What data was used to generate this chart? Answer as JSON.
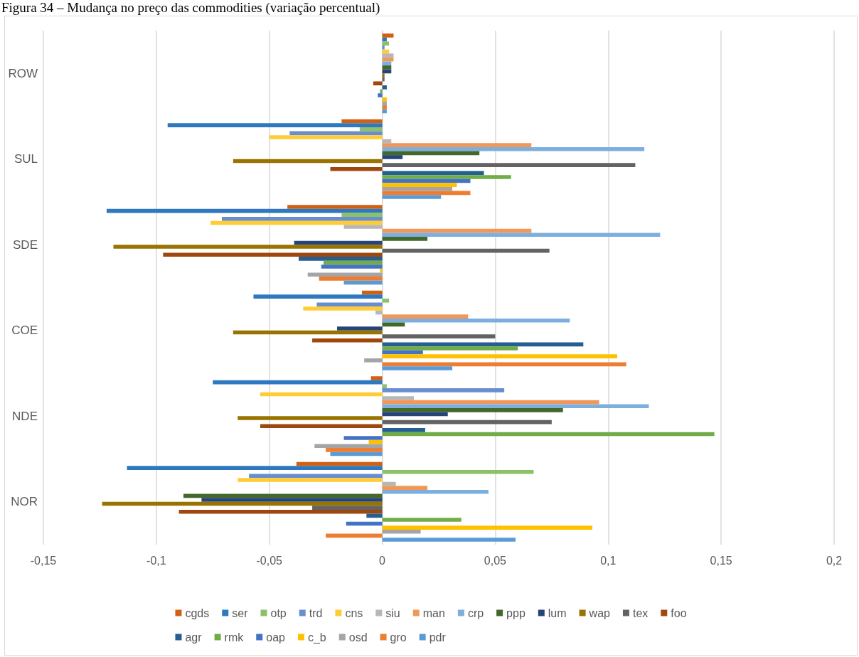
{
  "chart_data": {
    "type": "bar",
    "orientation": "horizontal",
    "title": "Figura 34 – Mudança no preço das commodities (variação percentual)",
    "categories": [
      "ROW",
      "SUL",
      "SDE",
      "COE",
      "NDE",
      "NOR"
    ],
    "xlim": [
      -0.15,
      0.2
    ],
    "xticks": [
      {
        "value": -0.15,
        "label": "-0,15"
      },
      {
        "value": -0.1,
        "label": "-0,1"
      },
      {
        "value": -0.05,
        "label": "-0,05"
      },
      0,
      {
        "value": 0.05,
        "label": "0,05"
      },
      {
        "value": 0.1,
        "label": "0,1"
      },
      {
        "value": 0.15,
        "label": "0,15"
      },
      {
        "value": 0.2,
        "label": "0,2"
      }
    ],
    "grid": "x",
    "legend": "bottom",
    "series": [
      {
        "name": "cgds",
        "color": "#d26012",
        "values": [
          0.005,
          -0.018,
          -0.042,
          -0.009,
          -0.005,
          -0.038
        ]
      },
      {
        "name": "ser",
        "color": "#2e78c0",
        "values": [
          0.002,
          -0.095,
          -0.122,
          -0.057,
          -0.075,
          -0.113
        ]
      },
      {
        "name": "otp",
        "color": "#8cc168",
        "values": [
          0.003,
          -0.01,
          -0.018,
          0.003,
          0.002,
          0.067
        ]
      },
      {
        "name": "trd",
        "color": "#698ed0",
        "values": [
          0.001,
          -0.041,
          -0.071,
          -0.029,
          0.054,
          -0.059
        ]
      },
      {
        "name": "cns",
        "color": "#ffcd33",
        "values": [
          0.003,
          -0.05,
          -0.076,
          -0.035,
          -0.054,
          -0.064
        ]
      },
      {
        "name": "siu",
        "color": "#b7b7b7",
        "values": [
          0.005,
          0.004,
          -0.017,
          -0.003,
          0.014,
          0.006
        ]
      },
      {
        "name": "man",
        "color": "#f1975a",
        "values": [
          0.005,
          0.066,
          0.066,
          0.038,
          0.096,
          0.02
        ]
      },
      {
        "name": "crp",
        "color": "#7cafdd",
        "values": [
          0.004,
          0.116,
          0.123,
          0.083,
          0.118,
          0.047
        ]
      },
      {
        "name": "ppp",
        "color": "#43682b",
        "values": [
          0.004,
          0.043,
          0.02,
          0.01,
          0.08,
          -0.088
        ]
      },
      {
        "name": "lum",
        "color": "#264478",
        "values": [
          0.004,
          0.009,
          -0.039,
          -0.02,
          0.029,
          -0.08
        ]
      },
      {
        "name": "wap",
        "color": "#997300",
        "values": [
          0.001,
          -0.066,
          -0.119,
          -0.066,
          -0.064,
          -0.124
        ]
      },
      {
        "name": "tex",
        "color": "#636363",
        "values": [
          0.001,
          0.112,
          0.074,
          0.05,
          0.075,
          -0.031
        ]
      },
      {
        "name": "foo",
        "color": "#9e480e",
        "values": [
          -0.004,
          -0.023,
          -0.097,
          -0.031,
          -0.054,
          -0.09
        ]
      },
      {
        "name": "agr",
        "color": "#255e91",
        "values": [
          0.002,
          0.045,
          -0.037,
          0.089,
          0.019,
          -0.007
        ]
      },
      {
        "name": "rmk",
        "color": "#70ad47",
        "values": [
          -0.001,
          0.057,
          -0.026,
          0.06,
          0.147,
          0.035
        ]
      },
      {
        "name": "oap",
        "color": "#4472c4",
        "values": [
          -0.002,
          0.039,
          -0.027,
          0.018,
          -0.017,
          -0.016
        ]
      },
      {
        "name": "c_b",
        "color": "#ffc000",
        "values": [
          0.002,
          0.033,
          -0.001,
          0.104,
          -0.006,
          0.093
        ]
      },
      {
        "name": "osd",
        "color": "#a5a5a5",
        "values": [
          0.002,
          0.031,
          -0.033,
          -0.008,
          -0.03,
          0.017
        ]
      },
      {
        "name": "gro",
        "color": "#ed7d31",
        "values": [
          0.002,
          0.039,
          -0.028,
          0.108,
          -0.025,
          -0.025
        ]
      },
      {
        "name": "pdr",
        "color": "#5b9bd5",
        "values": [
          0.002,
          0.026,
          -0.017,
          0.031,
          -0.023,
          0.059
        ]
      }
    ]
  }
}
